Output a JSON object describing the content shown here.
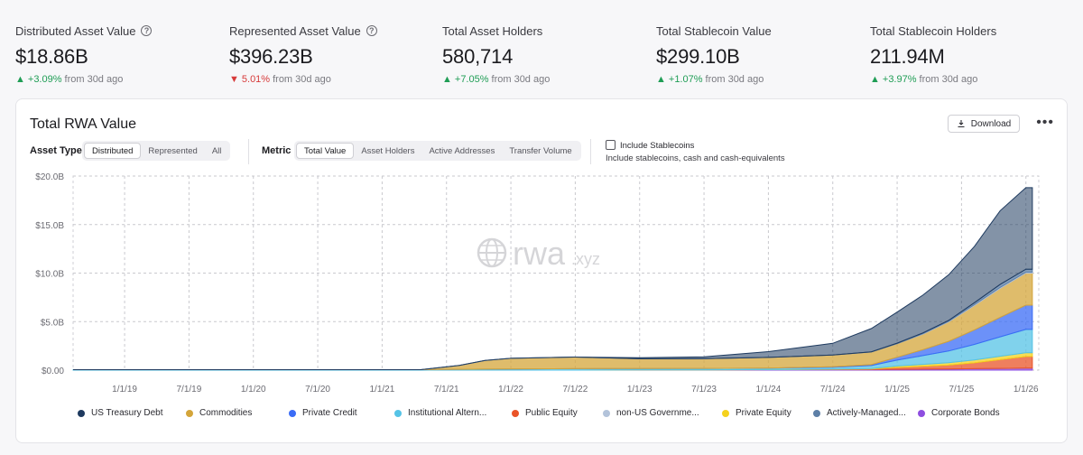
{
  "stats": [
    {
      "label": "Distributed Asset Value",
      "help": true,
      "value": "$18.86B",
      "dir": "up",
      "arrow": "▲",
      "change": "+3.09%",
      "period": "from 30d ago"
    },
    {
      "label": "Represented Asset Value",
      "help": true,
      "value": "$396.23B",
      "dir": "down",
      "arrow": "▼",
      "change": "5.01%",
      "period": "from 30d ago"
    },
    {
      "label": "Total Asset Holders",
      "help": false,
      "value": "580,714",
      "dir": "up",
      "arrow": "▲",
      "change": "+7.05%",
      "period": "from 30d ago"
    },
    {
      "label": "Total Stablecoin Value",
      "help": false,
      "value": "$299.10B",
      "dir": "up",
      "arrow": "▲",
      "change": "+1.07%",
      "period": "from 30d ago"
    },
    {
      "label": "Total Stablecoin Holders",
      "help": false,
      "value": "211.94M",
      "dir": "up",
      "arrow": "▲",
      "change": "+3.97%",
      "period": "from 30d ago"
    }
  ],
  "card": {
    "title": "Total RWA Value",
    "download": "Download",
    "more": "•••",
    "asset_type_label": "Asset Type",
    "asset_types": [
      "Distributed",
      "Represented",
      "All"
    ],
    "metric_label": "Metric",
    "metrics": [
      "Total Value",
      "Asset Holders",
      "Active Addresses",
      "Transfer Volume"
    ],
    "stablecoins_label": "Include Stablecoins",
    "stablecoins_sub": "Include stablecoins, cash and cash-equivalents"
  },
  "watermark": {
    "main": "rwa",
    "sub": ".xyz"
  },
  "colors": {
    "US Treasury Debt": "#1e3a5f",
    "Commodities": "#d4a53a",
    "Private Credit": "#3b6cf6",
    "Institutional Alternative Funds": "#55c3e6",
    "Public Equity": "#ea5428",
    "non-US Government Debt": "#b3c3da",
    "Private Equity": "#f5d21e",
    "Actively-Managed Strategies": "#5d7fa6",
    "Corporate Bonds": "#8e4ee0"
  },
  "legend": [
    {
      "label": "US Treasury Debt",
      "key": "US Treasury Debt"
    },
    {
      "label": "Commodities",
      "key": "Commodities"
    },
    {
      "label": "Private Credit",
      "key": "Private Credit"
    },
    {
      "label": "Institutional Altern...",
      "key": "Institutional Alternative Funds"
    },
    {
      "label": "Public Equity",
      "key": "Public Equity"
    },
    {
      "label": "non-US Governme...",
      "key": "non-US Government Debt"
    },
    {
      "label": "Private Equity",
      "key": "Private Equity"
    },
    {
      "label": "Actively-Managed...",
      "key": "Actively-Managed Strategies"
    },
    {
      "label": "Corporate Bonds",
      "key": "Corporate Bonds"
    }
  ],
  "chart_data": {
    "type": "area",
    "stacked": true,
    "title": "Total RWA Value",
    "xlabel": "",
    "ylabel": "",
    "xlim": [
      2018.6,
      2026.1
    ],
    "ylim": [
      0,
      20
    ],
    "y_ticks": [
      0,
      5,
      10,
      15,
      20
    ],
    "y_tick_labels": [
      "$0.00",
      "$5.0B",
      "$10.0B",
      "$15.0B",
      "$20.0B"
    ],
    "x_ticks": [
      2019.0,
      2019.5,
      2020.0,
      2020.5,
      2021.0,
      2021.5,
      2022.0,
      2022.5,
      2023.0,
      2023.5,
      2024.0,
      2024.5,
      2025.0,
      2025.5,
      2026.0
    ],
    "x_tick_labels": [
      "1/1/19",
      "7/1/19",
      "1/1/20",
      "7/1/20",
      "1/1/21",
      "7/1/21",
      "1/1/22",
      "7/1/22",
      "1/1/23",
      "7/1/23",
      "1/1/24",
      "7/1/24",
      "1/1/25",
      "7/1/25",
      "1/1/26"
    ],
    "grid": true,
    "legend_position": "bottom",
    "x": [
      2018.6,
      2019.0,
      2020.0,
      2021.0,
      2021.3,
      2021.6,
      2021.8,
      2022.0,
      2022.5,
      2023.0,
      2023.5,
      2024.0,
      2024.5,
      2024.8,
      2025.0,
      2025.2,
      2025.4,
      2025.6,
      2025.8,
      2026.0,
      2026.05
    ],
    "series": [
      {
        "name": "Corporate Bonds",
        "values": [
          0,
          0,
          0,
          0,
          0,
          0,
          0,
          0,
          0,
          0.02,
          0.03,
          0.05,
          0.06,
          0.07,
          0.08,
          0.1,
          0.12,
          0.15,
          0.18,
          0.2,
          0.2
        ]
      },
      {
        "name": "Public Equity",
        "values": [
          0,
          0,
          0,
          0,
          0,
          0,
          0,
          0,
          0,
          0,
          0,
          0,
          0.02,
          0.05,
          0.2,
          0.3,
          0.4,
          0.6,
          0.9,
          1.2,
          1.2
        ]
      },
      {
        "name": "Private Equity",
        "values": [
          0,
          0,
          0,
          0,
          0,
          0,
          0,
          0,
          0,
          0,
          0,
          0.01,
          0.02,
          0.05,
          0.15,
          0.2,
          0.25,
          0.3,
          0.35,
          0.4,
          0.4
        ]
      },
      {
        "name": "Institutional Alternative Funds",
        "values": [
          0.05,
          0.05,
          0.05,
          0.05,
          0.05,
          0.08,
          0.1,
          0.12,
          0.15,
          0.15,
          0.15,
          0.15,
          0.2,
          0.3,
          0.6,
          0.9,
          1.2,
          1.6,
          2.0,
          2.4,
          2.4
        ]
      },
      {
        "name": "Private Credit",
        "values": [
          0,
          0,
          0,
          0,
          0,
          0,
          0,
          0,
          0,
          0,
          0,
          0,
          0.05,
          0.1,
          0.3,
          0.6,
          1.0,
          1.5,
          2.0,
          2.5,
          2.5
        ]
      },
      {
        "name": "Commodities",
        "values": [
          0,
          0,
          0,
          0,
          0,
          0.4,
          0.9,
          1.1,
          1.2,
          1.0,
          1.0,
          1.1,
          1.2,
          1.3,
          1.4,
          1.6,
          2.0,
          2.5,
          3.0,
          3.3,
          3.3
        ]
      },
      {
        "name": "non-US Government Debt",
        "values": [
          0,
          0,
          0,
          0,
          0,
          0,
          0,
          0,
          0,
          0,
          0,
          0,
          0,
          0,
          0,
          0.05,
          0.05,
          0.1,
          0.1,
          0.1,
          0.1
        ]
      },
      {
        "name": "Actively-Managed Strategies",
        "values": [
          0,
          0,
          0,
          0,
          0,
          0,
          0,
          0,
          0,
          0,
          0,
          0,
          0.01,
          0.02,
          0.05,
          0.08,
          0.1,
          0.2,
          0.3,
          0.3,
          0.3
        ]
      },
      {
        "name": "US Treasury Debt",
        "values": [
          0,
          0,
          0,
          0,
          0,
          0,
          0,
          0,
          0,
          0.1,
          0.2,
          0.6,
          1.2,
          2.4,
          3.2,
          3.9,
          4.7,
          5.8,
          7.6,
          8.4,
          8.4
        ]
      }
    ]
  }
}
